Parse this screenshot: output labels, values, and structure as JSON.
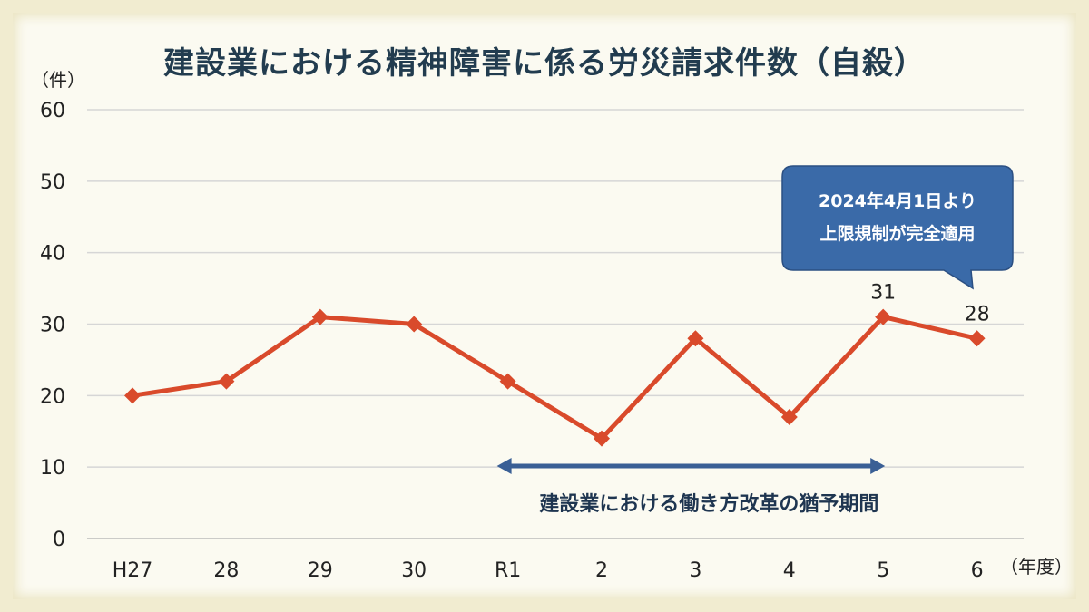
{
  "title": "建設業における精神障害に係る労災請求件数（自殺）",
  "chart_data": {
    "type": "line",
    "categories": [
      "H27",
      "28",
      "29",
      "30",
      "R1",
      "2",
      "3",
      "4",
      "5",
      "6"
    ],
    "values": [
      20,
      22,
      31,
      30,
      22,
      14,
      28,
      17,
      31,
      28
    ],
    "ylim": [
      0,
      60
    ],
    "yticks": [
      0,
      10,
      20,
      30,
      40,
      50,
      60
    ],
    "y_unit": "（件）",
    "x_unit": "（年度）",
    "grid": true,
    "line_color": "#d94a2b",
    "data_labels": [
      {
        "index": 8,
        "text": "31"
      },
      {
        "index": 9,
        "text": "28"
      }
    ],
    "annotations": {
      "period_label": "建設業における働き方改革の猶予期間",
      "period_from": "R1",
      "period_to": "5",
      "period_color": "#3a5f95",
      "callout_lines": [
        "2024年4月1日より",
        "上限規制が完全適用"
      ],
      "callout_color": "#3a6aa8"
    }
  }
}
